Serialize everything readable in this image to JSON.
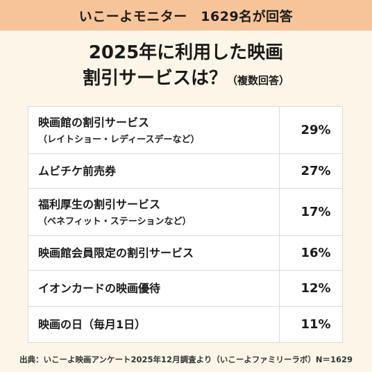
{
  "banner": "いこーよモニター　1629名が回答",
  "title": {
    "line1": "2025年に利用した映画",
    "line2": "割引サービスは？",
    "note": "（複数回答）"
  },
  "chart_data": {
    "type": "table",
    "rows": [
      {
        "label": "映画館の割引サービス",
        "sublabel": "（レイトショー・レディースデーなど）",
        "value": "29%"
      },
      {
        "label": "ムビチケ前売券",
        "sublabel": "",
        "value": "27%"
      },
      {
        "label": "福利厚生の割引サービス",
        "sublabel": "（ベネフィット・ステーションなど）",
        "value": "17%"
      },
      {
        "label": "映画館会員限定の割引サービス",
        "sublabel": "",
        "value": "16%"
      },
      {
        "label": "イオンカードの映画優待",
        "sublabel": "",
        "value": "12%"
      },
      {
        "label": "映画の日（毎月1日）",
        "sublabel": "",
        "value": "11%"
      }
    ]
  },
  "footer": "出典：いこーよ映画アンケート2025年12月調査より（いこーよファミリーラボ）N＝1629",
  "colors": {
    "background": "#fdf6e8",
    "banner": "#f7c499",
    "table_bg": "#ffffff",
    "border": "#d9d9d9"
  }
}
